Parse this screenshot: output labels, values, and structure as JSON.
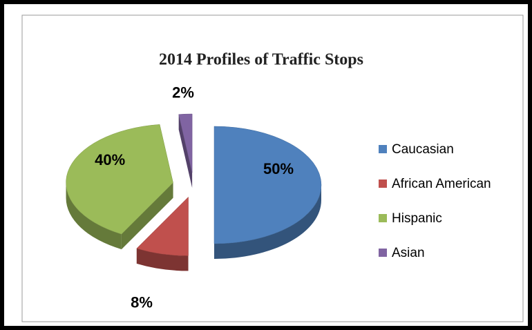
{
  "chart_data": {
    "type": "pie",
    "title": "2014 Profiles of Traffic Stops",
    "categories": [
      "Caucasian",
      "African American",
      "Hispanic",
      "Asian"
    ],
    "values": [
      50,
      8,
      40,
      2
    ],
    "value_labels": [
      "50%",
      "8%",
      "40%",
      "2%"
    ],
    "colors": [
      "#4f81bd",
      "#c0504d",
      "#9bbb59",
      "#8064a2"
    ],
    "legend": "right"
  }
}
